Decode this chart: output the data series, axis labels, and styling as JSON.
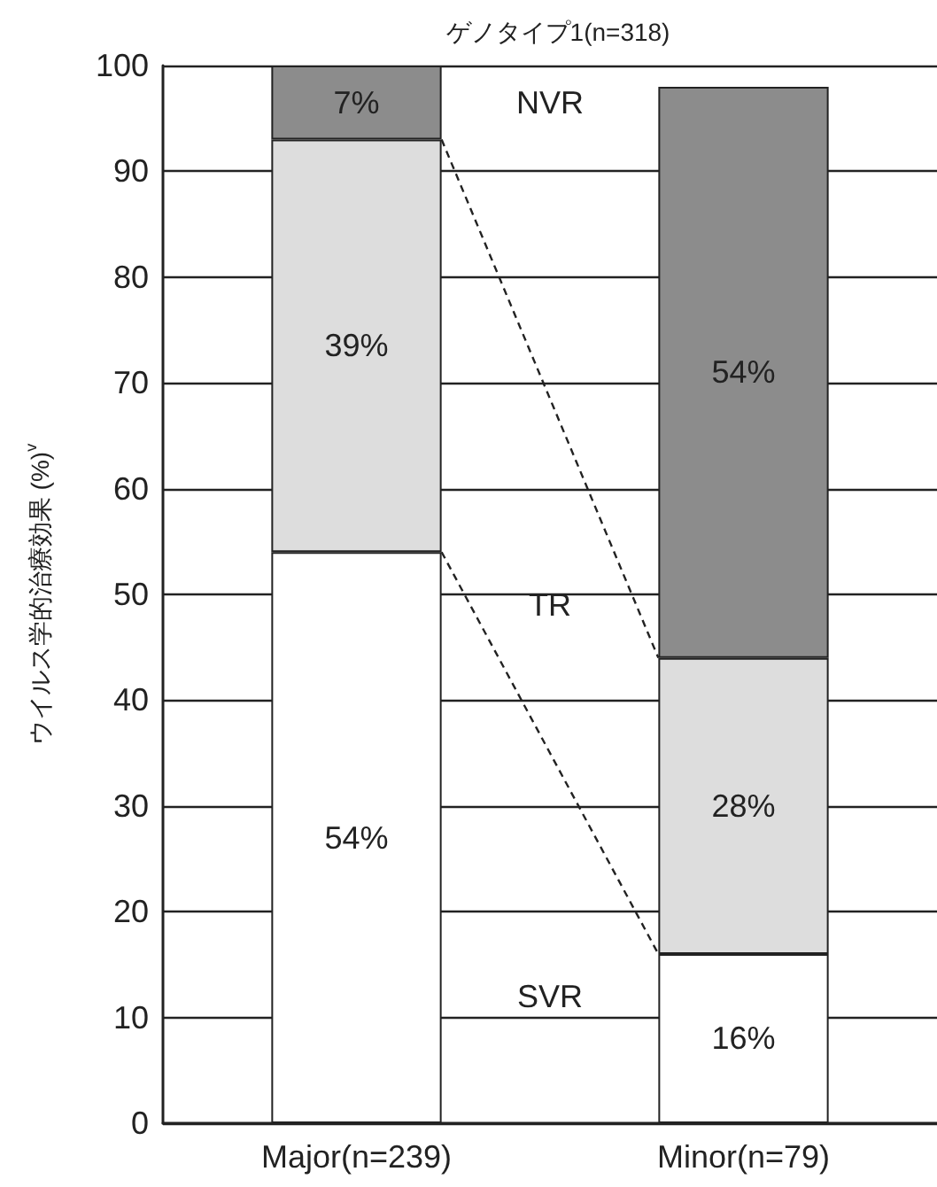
{
  "chart_data": {
    "type": "bar",
    "stacked": true,
    "title": "ゲノタイプ1(n=318)",
    "ylabel": "ウイルス学的治療効果 (%)$^{v}$",
    "categories": [
      "Major(n=239)",
      "Minor(n=79)"
    ],
    "series": [
      {
        "name": "SVR",
        "color": "#ffffff",
        "values": [
          54,
          16
        ],
        "value_labels": [
          "54%",
          "16%"
        ]
      },
      {
        "name": "TR",
        "color": "#dddddd",
        "values": [
          39,
          28
        ],
        "value_labels": [
          "39%",
          "28%"
        ]
      },
      {
        "name": "NVR",
        "color": "#8c8c8c",
        "values": [
          7,
          54
        ],
        "value_labels": [
          "7%",
          "54%"
        ]
      }
    ],
    "ylim": [
      0,
      100
    ],
    "yticks": [
      0,
      10,
      20,
      30,
      40,
      50,
      60,
      70,
      80,
      90,
      100
    ],
    "grid": "y",
    "legend": false
  }
}
